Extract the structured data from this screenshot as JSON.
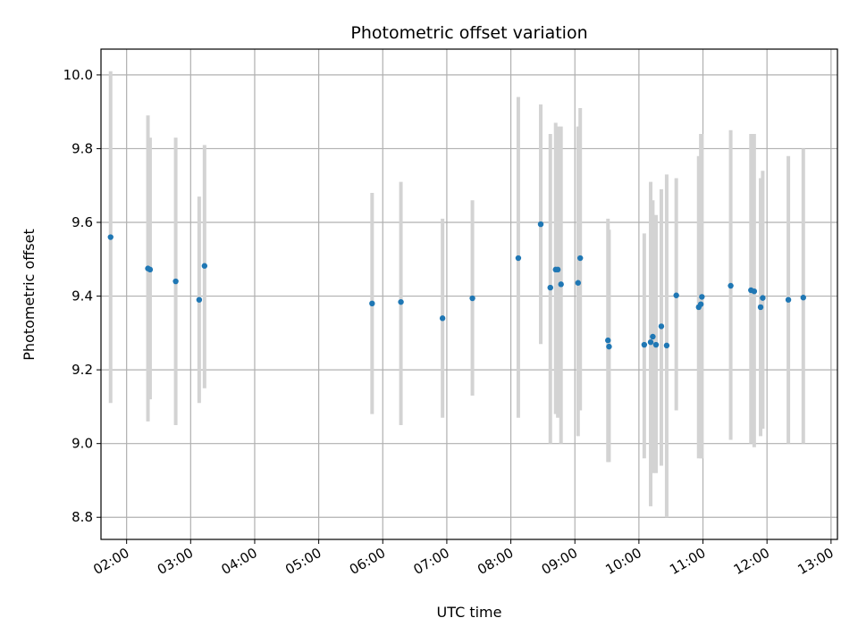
{
  "chart_data": {
    "type": "scatter",
    "title": "Photometric offset variation",
    "xlabel": "UTC time",
    "ylabel": "Photometric offset",
    "xlim": [
      "01:36",
      "13:06"
    ],
    "ylim": [
      8.74,
      10.07
    ],
    "x_ticks": [
      "02:00",
      "03:00",
      "04:00",
      "05:00",
      "06:00",
      "07:00",
      "08:00",
      "09:00",
      "10:00",
      "11:00",
      "12:00",
      "13:00"
    ],
    "y_ticks": [
      "8.8",
      "9.0",
      "9.2",
      "9.4",
      "9.6",
      "9.8",
      "10.0"
    ],
    "y_tick_values": [
      8.8,
      9.0,
      9.2,
      9.4,
      9.6,
      9.8,
      10.0
    ],
    "grid": true,
    "point_color": "#1f77b4",
    "errorbar_color": "#d3d3d3",
    "series": [
      {
        "points": [
          {
            "time": "01:45",
            "value": 9.56,
            "low": 9.11,
            "high": 10.01
          },
          {
            "time": "02:20",
            "value": 9.475,
            "low": 9.06,
            "high": 9.89
          },
          {
            "time": "02:22",
            "value": 9.472,
            "low": 9.12,
            "high": 9.83
          },
          {
            "time": "02:46",
            "value": 9.44,
            "low": 9.05,
            "high": 9.83
          },
          {
            "time": "03:08",
            "value": 9.39,
            "low": 9.11,
            "high": 9.67
          },
          {
            "time": "03:13",
            "value": 9.482,
            "low": 9.15,
            "high": 9.81
          },
          {
            "time": "05:50",
            "value": 9.38,
            "low": 9.08,
            "high": 9.68
          },
          {
            "time": "06:17",
            "value": 9.384,
            "low": 9.05,
            "high": 9.71
          },
          {
            "time": "06:56",
            "value": 9.34,
            "low": 9.07,
            "high": 9.61
          },
          {
            "time": "07:24",
            "value": 9.394,
            "low": 9.13,
            "high": 9.66
          },
          {
            "time": "08:07",
            "value": 9.503,
            "low": 9.07,
            "high": 9.94
          },
          {
            "time": "08:28",
            "value": 9.595,
            "low": 9.27,
            "high": 9.92
          },
          {
            "time": "08:37",
            "value": 9.423,
            "low": 9.0,
            "high": 9.84
          },
          {
            "time": "08:42",
            "value": 9.472,
            "low": 9.08,
            "high": 9.87
          },
          {
            "time": "08:44",
            "value": 9.472,
            "low": 9.07,
            "high": 9.86
          },
          {
            "time": "08:47",
            "value": 9.432,
            "low": 9.0,
            "high": 9.86
          },
          {
            "time": "09:03",
            "value": 9.436,
            "low": 9.02,
            "high": 9.86
          },
          {
            "time": "09:05",
            "value": 9.503,
            "low": 9.09,
            "high": 9.91
          },
          {
            "time": "09:31",
            "value": 9.28,
            "low": 8.95,
            "high": 9.61
          },
          {
            "time": "09:32",
            "value": 9.263,
            "low": 8.95,
            "high": 9.58
          },
          {
            "time": "10:05",
            "value": 9.268,
            "low": 8.96,
            "high": 9.57
          },
          {
            "time": "10:11",
            "value": 9.275,
            "low": 8.83,
            "high": 9.71
          },
          {
            "time": "10:13",
            "value": 9.29,
            "low": 8.92,
            "high": 9.66
          },
          {
            "time": "10:16",
            "value": 9.268,
            "low": 8.92,
            "high": 9.62
          },
          {
            "time": "10:21",
            "value": 9.318,
            "low": 8.94,
            "high": 9.69
          },
          {
            "time": "10:26",
            "value": 9.266,
            "low": 8.8,
            "high": 9.73
          },
          {
            "time": "10:35",
            "value": 9.402,
            "low": 9.09,
            "high": 9.72
          },
          {
            "time": "10:56",
            "value": 9.37,
            "low": 8.96,
            "high": 9.78
          },
          {
            "time": "10:58",
            "value": 9.378,
            "low": 8.96,
            "high": 9.84
          },
          {
            "time": "10:59",
            "value": 9.398,
            "low": 8.96,
            "high": 9.84
          },
          {
            "time": "11:26",
            "value": 9.428,
            "low": 9.01,
            "high": 9.85
          },
          {
            "time": "11:45",
            "value": 9.416,
            "low": 9.0,
            "high": 9.84
          },
          {
            "time": "11:48",
            "value": 9.413,
            "low": 8.99,
            "high": 9.84
          },
          {
            "time": "11:54",
            "value": 9.37,
            "low": 9.02,
            "high": 9.72
          },
          {
            "time": "11:56",
            "value": 9.395,
            "low": 9.04,
            "high": 9.74
          },
          {
            "time": "12:20",
            "value": 9.39,
            "low": 9.0,
            "high": 9.78
          },
          {
            "time": "12:34",
            "value": 9.396,
            "low": 9.0,
            "high": 9.8
          }
        ]
      }
    ]
  }
}
